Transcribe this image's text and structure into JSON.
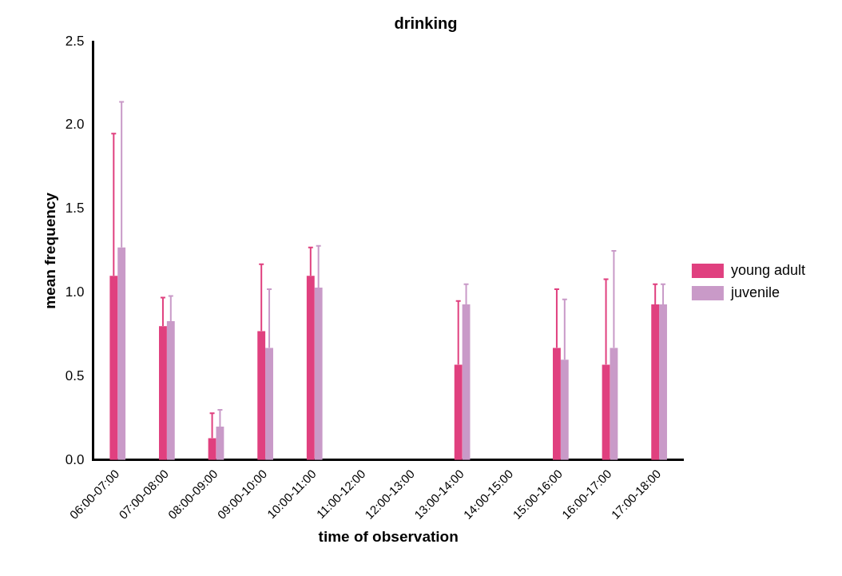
{
  "chart_data": {
    "type": "bar",
    "title": "drinking",
    "xlabel": "time of observation",
    "ylabel": "mean frequency",
    "categories": [
      "06:00-07:00",
      "07:00-08:00",
      "08:00-09:00",
      "09:00-10:00",
      "10:00-11:00",
      "11:00-12:00",
      "12:00-13:00",
      "13:00-14:00",
      "14:00-15:00",
      "15:00-16:00",
      "16:00-17:00",
      "17:00-18:00"
    ],
    "series": [
      {
        "name": "young adult",
        "color": "#e0407f",
        "values": [
          1.1,
          0.8,
          0.13,
          0.77,
          1.1,
          0,
          0,
          0.57,
          0,
          0.67,
          0.57,
          0.93
        ],
        "errors": [
          [
            1.1,
            1.95
          ],
          [
            0.8,
            0.97
          ],
          [
            0.13,
            0.28
          ],
          [
            0.77,
            1.17
          ],
          [
            1.1,
            1.27
          ],
          null,
          null,
          [
            0.57,
            0.95
          ],
          null,
          [
            0.67,
            1.02
          ],
          [
            0.57,
            1.08
          ],
          [
            0.93,
            1.05
          ]
        ]
      },
      {
        "name": "juvenile",
        "color": "#c99ac8",
        "values": [
          1.27,
          0.83,
          0.2,
          0.67,
          1.03,
          0,
          0,
          0.93,
          0,
          0.6,
          0.67,
          0.93
        ],
        "errors": [
          [
            1.27,
            2.14
          ],
          [
            0.83,
            0.98
          ],
          [
            0.2,
            0.3
          ],
          [
            0.67,
            1.02
          ],
          [
            1.03,
            1.28
          ],
          null,
          null,
          [
            0.93,
            1.05
          ],
          null,
          [
            0.6,
            0.96
          ],
          [
            0.67,
            1.25
          ],
          [
            0.93,
            1.05
          ]
        ]
      }
    ],
    "ylim": [
      0,
      2.5
    ],
    "yticks": [
      {
        "value": 0,
        "label": "0.0"
      },
      {
        "value": 0.5,
        "label": "0.5"
      },
      {
        "value": 1,
        "label": "1.0"
      },
      {
        "value": 1.5,
        "label": "1.5"
      },
      {
        "value": 2,
        "label": "2.0"
      },
      {
        "value": 2.5,
        "label": "2.5"
      }
    ],
    "grid": false,
    "legend": "right"
  }
}
